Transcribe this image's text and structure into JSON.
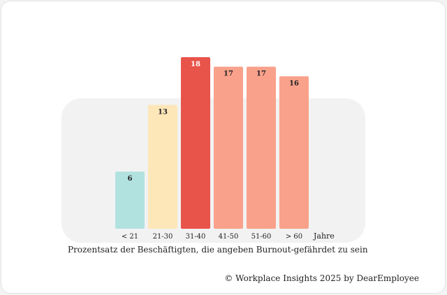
{
  "chart_data": {
    "type": "bar",
    "categories": [
      "< 21",
      "21-30",
      "31-40",
      "41-50",
      "51-60",
      "> 60"
    ],
    "values": [
      6,
      13,
      18,
      17,
      17,
      16
    ],
    "colors": [
      "#b2e2e0",
      "#fde7b9",
      "#e8534a",
      "#f9a18b",
      "#f9a18b",
      "#f9a18b"
    ],
    "value_label_colors": [
      "#222222",
      "#222222",
      "#ffffff",
      "#222222",
      "#222222",
      "#222222"
    ],
    "x_unit_label": "Jahre",
    "xlabel": "Prozentsatz der Beschäftigten, die angeben Burnout-gefährdet zu sein",
    "ylim": [
      0,
      18
    ],
    "grid": false,
    "legend": "none"
  },
  "footer": {
    "credit": "© Workplace Insights 2025 by DearEmployee"
  },
  "colors": {
    "panel_background": "#f2f2f2",
    "card_background": "#ffffff"
  }
}
